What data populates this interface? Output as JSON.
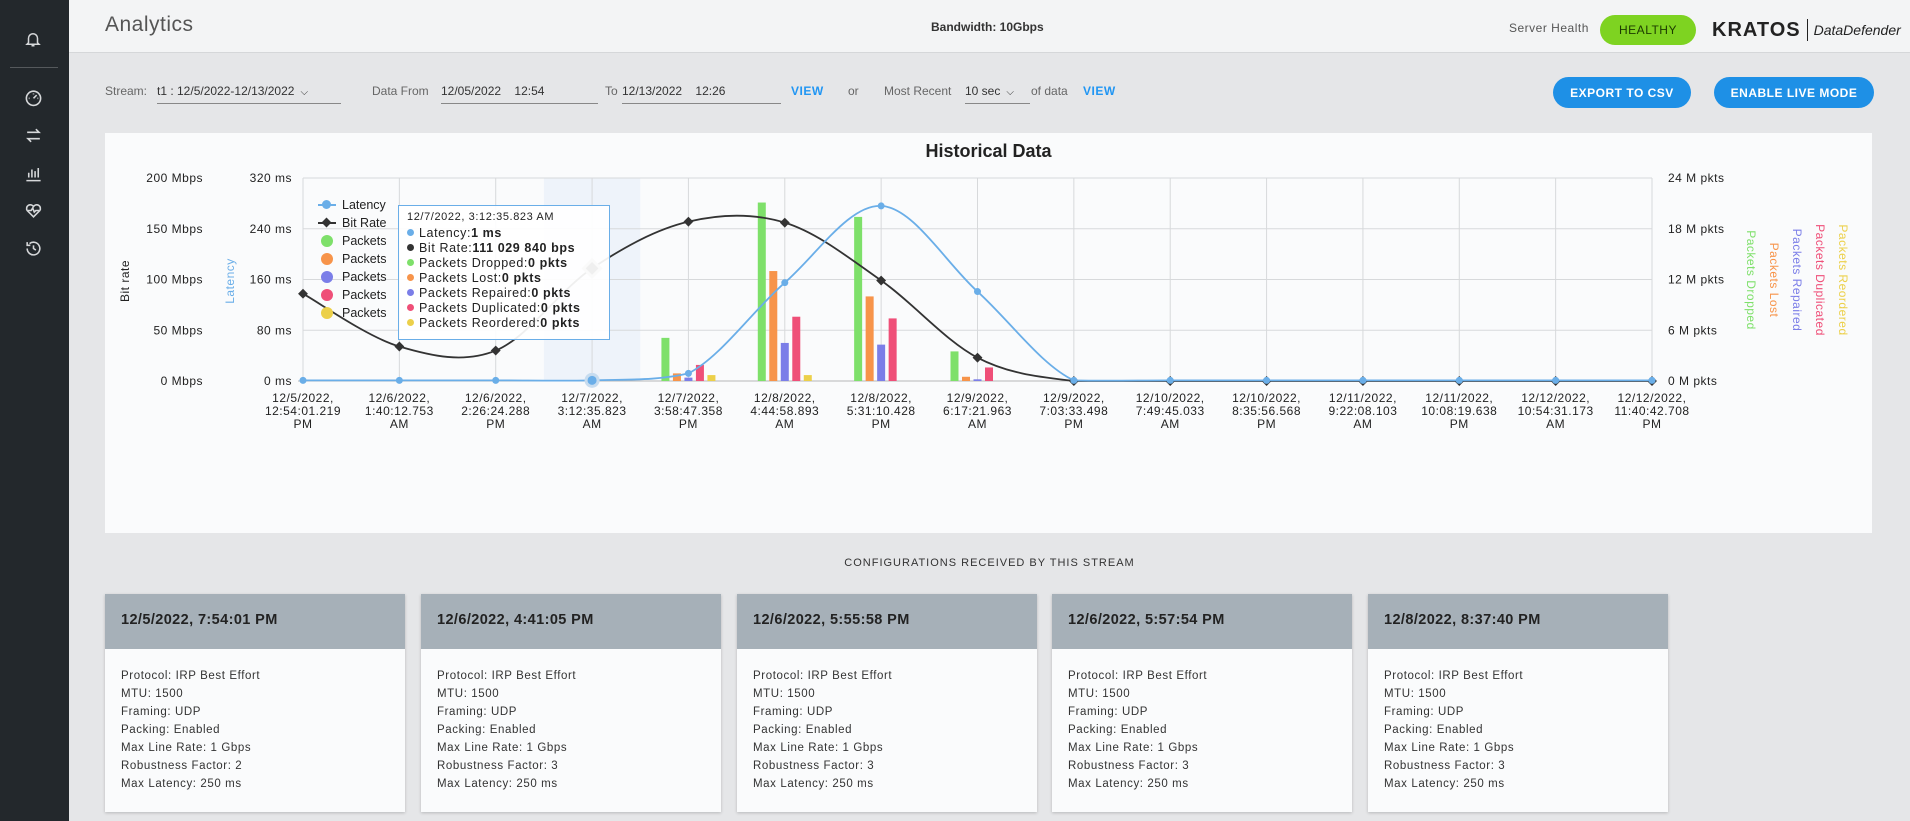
{
  "header": {
    "title": "Analytics",
    "bandwidth": "Bandwidth: 10Gbps",
    "server_health_label": "Server Health",
    "health_status": "HEALTHY",
    "logo_brand": "KRATOS",
    "logo_product": "DataDefender"
  },
  "sidebar": {
    "items": [
      {
        "icon": "bell-icon"
      },
      {
        "icon": "dashboard-gauge-icon"
      },
      {
        "icon": "transfer-arrows-icon"
      },
      {
        "icon": "bar-chart-icon"
      },
      {
        "icon": "heart-pulse-icon"
      },
      {
        "icon": "history-icon"
      }
    ]
  },
  "controls": {
    "stream_label": "Stream:",
    "stream_value": "t1 : 12/5/2022-12/13/2022",
    "data_from_label": "Data From",
    "data_from_date": "12/05/2022",
    "data_from_time": "12:54",
    "to_label": "To",
    "to_date": "12/13/2022",
    "to_time": "12:26",
    "view_label": "VIEW",
    "or_label": "or",
    "most_recent_label": "Most Recent",
    "most_recent_value": "10 sec",
    "of_data_label": "of data",
    "view2_label": "VIEW",
    "export_label": "EXPORT TO CSV",
    "live_label": "ENABLE LIVE MODE"
  },
  "legend": {
    "items": [
      {
        "label": "Latency",
        "color": "#6aaee8"
      },
      {
        "label": "Bit Rate",
        "color": "#333333"
      },
      {
        "label": "Packets",
        "color": "#7ee06a"
      },
      {
        "label": "Packets",
        "color": "#f7944a"
      },
      {
        "label": "Packets",
        "color": "#7b7ee8"
      },
      {
        "label": "Packets",
        "color": "#ef4f78"
      },
      {
        "label": "Packets",
        "color": "#ecd04a"
      }
    ]
  },
  "tooltip": {
    "date": "12/7/2022, 3:12:35.823 AM",
    "rows": [
      {
        "label": "Latency: ",
        "value": "1 ms",
        "color": "#6aaee8"
      },
      {
        "label": "Bit Rate: ",
        "value": "111 029 840 bps",
        "color": "#333333"
      },
      {
        "label": "Packets Dropped: ",
        "value": "0 pkts",
        "color": "#7ee06a"
      },
      {
        "label": "Packets Lost: ",
        "value": "0 pkts",
        "color": "#f7944a"
      },
      {
        "label": "Packets Repaired: ",
        "value": "0 pkts",
        "color": "#7b7ee8"
      },
      {
        "label": "Packets Duplicated: ",
        "value": "0 pkts",
        "color": "#ef4f78"
      },
      {
        "label": "Packets Reordered: ",
        "value": "0 pkts",
        "color": "#ecd04a"
      }
    ]
  },
  "chart_data": {
    "type": "line",
    "title": "Historical Data",
    "left_axis_label": "Bit rate",
    "left2_axis_label": "Latency",
    "right_axis_labels": [
      "Packets Dropped",
      "Packets Lost",
      "Packets Repaired",
      "Packets Duplicated",
      "Packets Reordered"
    ],
    "bitrate_ticks": [
      "0 Mbps",
      "50 Mbps",
      "100 Mbps",
      "150 Mbps",
      "200 Mbps"
    ],
    "latency_ticks": [
      "0 ms",
      "80 ms",
      "160 ms",
      "240 ms",
      "320 ms"
    ],
    "packets_ticks": [
      "0 M pkts",
      "6 M pkts",
      "12 M pkts",
      "18 M pkts",
      "24 M pkts"
    ],
    "bitrate_ylim": [
      0,
      200
    ],
    "latency_ylim": [
      0,
      320
    ],
    "packets_ylim": [
      0,
      24
    ],
    "categories": [
      [
        "12/5/2022,",
        "12:54:01.219",
        "PM"
      ],
      [
        "12/6/2022,",
        "1:40:12.753",
        "AM"
      ],
      [
        "12/6/2022,",
        "2:26:24.288",
        "PM"
      ],
      [
        "12/7/2022,",
        "3:12:35.823",
        "AM"
      ],
      [
        "12/7/2022,",
        "3:58:47.358",
        "PM"
      ],
      [
        "12/8/2022,",
        "4:44:58.893",
        "AM"
      ],
      [
        "12/8/2022,",
        "5:31:10.428",
        "PM"
      ],
      [
        "12/9/2022,",
        "6:17:21.963",
        "AM"
      ],
      [
        "12/9/2022,",
        "7:03:33.498",
        "PM"
      ],
      [
        "12/10/2022,",
        "7:49:45.033",
        "AM"
      ],
      [
        "12/10/2022,",
        "8:35:56.568",
        "PM"
      ],
      [
        "12/11/2022,",
        "9:22:08.103",
        "AM"
      ],
      [
        "12/11/2022,",
        "10:08:19.638",
        "PM"
      ],
      [
        "12/12/2022,",
        "10:54:31.173",
        "AM"
      ],
      [
        "12/12/2022,",
        "11:40:42.708",
        "PM"
      ]
    ],
    "highlight_index": 3,
    "series": [
      {
        "name": "Bit Rate",
        "axis": "bitrate",
        "unit": "Mbps",
        "color": "#333333",
        "values": [
          86,
          34,
          30,
          111,
          157,
          156,
          99,
          23,
          0,
          0,
          0,
          0,
          0,
          0,
          0
        ]
      },
      {
        "name": "Latency",
        "axis": "latency",
        "unit": "ms",
        "color": "#6aaee8",
        "values": [
          1,
          1,
          1,
          1,
          12,
          155,
          276,
          141,
          1,
          1,
          1,
          1,
          1,
          1,
          1
        ]
      },
      {
        "name": "Packets Dropped",
        "axis": "packets",
        "unit": "M pkts",
        "color": "#7ee06a",
        "values": [
          0,
          0,
          0,
          0,
          5.1,
          21.1,
          19.4,
          3.5,
          0,
          0,
          0,
          0,
          0,
          0,
          0
        ]
      },
      {
        "name": "Packets Lost",
        "axis": "packets",
        "unit": "M pkts",
        "color": "#f7944a",
        "values": [
          0,
          0,
          0,
          0,
          0.9,
          13.0,
          10.0,
          0.5,
          0,
          0,
          0,
          0,
          0,
          0,
          0
        ]
      },
      {
        "name": "Packets Repaired",
        "axis": "packets",
        "unit": "M pkts",
        "color": "#7b7ee8",
        "values": [
          0,
          0,
          0,
          0,
          0.4,
          4.5,
          4.3,
          0.2,
          0,
          0,
          0,
          0,
          0,
          0,
          0
        ]
      },
      {
        "name": "Packets Duplicated",
        "axis": "packets",
        "unit": "M pkts",
        "color": "#ef4f78",
        "values": [
          0,
          0,
          0,
          0,
          1.9,
          7.6,
          7.4,
          1.6,
          0,
          0,
          0,
          0,
          0,
          0,
          0
        ]
      },
      {
        "name": "Packets Reordered",
        "axis": "packets",
        "unit": "M pkts",
        "color": "#ecd04a",
        "values": [
          0,
          0,
          0,
          0,
          0.7,
          0.7,
          0,
          0,
          0,
          0,
          0,
          0,
          0,
          0,
          0
        ]
      }
    ]
  },
  "configs": {
    "heading": "CONFIGURATIONS RECEIVED BY THIS STREAM",
    "cards": [
      {
        "title": "12/5/2022, 7:54:01 PM",
        "lines": [
          "Protocol: IRP Best Effort",
          "MTU: 1500",
          "Framing: UDP",
          "Packing: Enabled",
          "Max Line Rate: 1 Gbps",
          "Robustness Factor: 2",
          "Max Latency: 250 ms"
        ]
      },
      {
        "title": "12/6/2022, 4:41:05 PM",
        "lines": [
          "Protocol: IRP Best Effort",
          "MTU: 1500",
          "Framing: UDP",
          "Packing: Enabled",
          "Max Line Rate: 1 Gbps",
          "Robustness Factor: 3",
          "Max Latency: 250 ms"
        ]
      },
      {
        "title": "12/6/2022, 5:55:58 PM",
        "lines": [
          "Protocol: IRP Best Effort",
          "MTU: 1500",
          "Framing: UDP",
          "Packing: Enabled",
          "Max Line Rate: 1 Gbps",
          "Robustness Factor: 3",
          "Max Latency: 250 ms"
        ]
      },
      {
        "title": "12/6/2022, 5:57:54 PM",
        "lines": [
          "Protocol: IRP Best Effort",
          "MTU: 1500",
          "Framing: UDP",
          "Packing: Enabled",
          "Max Line Rate: 1 Gbps",
          "Robustness Factor: 3",
          "Max Latency: 250 ms"
        ]
      },
      {
        "title": "12/8/2022, 8:37:40 PM",
        "lines": [
          "Protocol: IRP Best Effort",
          "MTU: 1500",
          "Framing: UDP",
          "Packing: Enabled",
          "Max Line Rate: 1 Gbps",
          "Robustness Factor: 3",
          "Max Latency: 250 ms"
        ]
      }
    ]
  }
}
